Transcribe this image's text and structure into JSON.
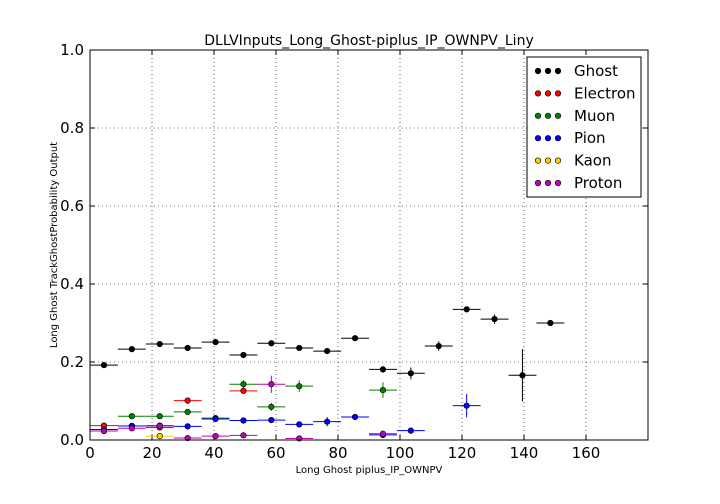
{
  "chart_data": {
    "type": "scatter",
    "title": "DLLVInputs_Long_Ghost-piplus_IP_OWNPV_Liny",
    "xlabel": "Long Ghost piplus_IP_OWNPV",
    "ylabel": "Long Ghost TrackGhostProbability Output",
    "xlim": [
      0,
      180
    ],
    "ylim": [
      0,
      1.0
    ],
    "xticks": [
      "0",
      "20",
      "40",
      "60",
      "80",
      "100",
      "120",
      "140",
      "160"
    ],
    "yticks": [
      "0.0",
      "0.2",
      "0.4",
      "0.6",
      "0.8",
      "1.0"
    ],
    "grid": true,
    "legend_position": "top-right",
    "series": [
      {
        "name": "Ghost",
        "color": "#000000",
        "points": [
          {
            "x": 4.5,
            "y": 0.192,
            "xerr": 4.5,
            "yerr": 0.003
          },
          {
            "x": 13.5,
            "y": 0.233,
            "xerr": 4.5,
            "yerr": 0.004
          },
          {
            "x": 22.5,
            "y": 0.246,
            "xerr": 4.5,
            "yerr": 0.004
          },
          {
            "x": 31.5,
            "y": 0.236,
            "xerr": 4.5,
            "yerr": 0.004
          },
          {
            "x": 40.5,
            "y": 0.251,
            "xerr": 4.5,
            "yerr": 0.004
          },
          {
            "x": 49.5,
            "y": 0.218,
            "xerr": 4.5,
            "yerr": 0.005
          },
          {
            "x": 58.5,
            "y": 0.248,
            "xerr": 4.5,
            "yerr": 0.005
          },
          {
            "x": 67.5,
            "y": 0.236,
            "xerr": 4.5,
            "yerr": 0.005
          },
          {
            "x": 76.5,
            "y": 0.228,
            "xerr": 4.5,
            "yerr": 0.006
          },
          {
            "x": 85.5,
            "y": 0.261,
            "xerr": 4.5,
            "yerr": 0.007
          },
          {
            "x": 94.5,
            "y": 0.181,
            "xerr": 4.5,
            "yerr": 0.008
          },
          {
            "x": 103.5,
            "y": 0.171,
            "xerr": 4.5,
            "yerr": 0.015
          },
          {
            "x": 112.5,
            "y": 0.241,
            "xerr": 4.5,
            "yerr": 0.012
          },
          {
            "x": 121.5,
            "y": 0.335,
            "xerr": 4.5,
            "yerr": 0.005
          },
          {
            "x": 130.5,
            "y": 0.31,
            "xerr": 4.5,
            "yerr": 0.012
          },
          {
            "x": 139.5,
            "y": 0.166,
            "xerr": 4.5,
            "yerr": 0.067
          },
          {
            "x": 148.5,
            "y": 0.3,
            "xerr": 4.5,
            "yerr": 0.003
          }
        ]
      },
      {
        "name": "Electron",
        "color": "#ff0000",
        "points": [
          {
            "x": 4.5,
            "y": 0.037,
            "xerr": 4.5,
            "yerr": 0.003
          },
          {
            "x": 13.5,
            "y": 0.036,
            "xerr": 4.5,
            "yerr": 0.003
          },
          {
            "x": 22.5,
            "y": 0.032,
            "xerr": 4.5,
            "yerr": 0.003
          },
          {
            "x": 31.5,
            "y": 0.101,
            "xerr": 4.5,
            "yerr": 0.008
          },
          {
            "x": 40.5,
            "y": 0.055,
            "xerr": 4.5,
            "yerr": 0.004
          },
          {
            "x": 49.5,
            "y": 0.126,
            "xerr": 4.5,
            "yerr": 0.005
          }
        ]
      },
      {
        "name": "Muon",
        "color": "#008000",
        "points": [
          {
            "x": 13.5,
            "y": 0.061,
            "xerr": 4.5,
            "yerr": 0.003
          },
          {
            "x": 22.5,
            "y": 0.061,
            "xerr": 4.5,
            "yerr": 0.003
          },
          {
            "x": 31.5,
            "y": 0.072,
            "xerr": 4.5,
            "yerr": 0.004
          },
          {
            "x": 40.5,
            "y": 0.056,
            "xerr": 4.5,
            "yerr": 0.004
          },
          {
            "x": 49.5,
            "y": 0.143,
            "xerr": 4.5,
            "yerr": 0.01
          },
          {
            "x": 58.5,
            "y": 0.085,
            "xerr": 4.5,
            "yerr": 0.01
          },
          {
            "x": 67.5,
            "y": 0.138,
            "xerr": 4.5,
            "yerr": 0.015
          },
          {
            "x": 94.5,
            "y": 0.128,
            "xerr": 4.5,
            "yerr": 0.02
          }
        ]
      },
      {
        "name": "Pion",
        "color": "#0000ff",
        "points": [
          {
            "x": 4.5,
            "y": 0.027,
            "xerr": 4.5,
            "yerr": 0.002
          },
          {
            "x": 13.5,
            "y": 0.036,
            "xerr": 4.5,
            "yerr": 0.002
          },
          {
            "x": 22.5,
            "y": 0.037,
            "xerr": 4.5,
            "yerr": 0.002
          },
          {
            "x": 31.5,
            "y": 0.035,
            "xerr": 4.5,
            "yerr": 0.002
          },
          {
            "x": 40.5,
            "y": 0.054,
            "xerr": 4.5,
            "yerr": 0.003
          },
          {
            "x": 49.5,
            "y": 0.05,
            "xerr": 4.5,
            "yerr": 0.003
          },
          {
            "x": 58.5,
            "y": 0.051,
            "xerr": 4.5,
            "yerr": 0.004
          },
          {
            "x": 67.5,
            "y": 0.04,
            "xerr": 4.5,
            "yerr": 0.004
          },
          {
            "x": 76.5,
            "y": 0.047,
            "xerr": 4.5,
            "yerr": 0.012
          },
          {
            "x": 85.5,
            "y": 0.059,
            "xerr": 4.5,
            "yerr": 0.008
          },
          {
            "x": 94.5,
            "y": 0.013,
            "xerr": 4.5,
            "yerr": 0.004
          },
          {
            "x": 103.5,
            "y": 0.024,
            "xerr": 4.5,
            "yerr": 0.004
          },
          {
            "x": 121.5,
            "y": 0.088,
            "xerr": 4.5,
            "yerr": 0.03
          }
        ]
      },
      {
        "name": "Kaon",
        "color": "#ffcc00",
        "points": [
          {
            "x": 22.5,
            "y": 0.01,
            "xerr": 4.5,
            "yerr": 0.004
          }
        ]
      },
      {
        "name": "Proton",
        "color": "#bf00bf",
        "points": [
          {
            "x": 4.5,
            "y": 0.023,
            "xerr": 4.5,
            "yerr": 0.002
          },
          {
            "x": 13.5,
            "y": 0.03,
            "xerr": 4.5,
            "yerr": 0.002
          },
          {
            "x": 22.5,
            "y": 0.036,
            "xerr": 4.5,
            "yerr": 0.003
          },
          {
            "x": 31.5,
            "y": 0.005,
            "xerr": 4.5,
            "yerr": 0.002
          },
          {
            "x": 40.5,
            "y": 0.01,
            "xerr": 4.5,
            "yerr": 0.002
          },
          {
            "x": 49.5,
            "y": 0.012,
            "xerr": 4.5,
            "yerr": 0.002
          },
          {
            "x": 58.5,
            "y": 0.143,
            "xerr": 4.5,
            "yerr": 0.022
          },
          {
            "x": 67.5,
            "y": 0.004,
            "xerr": 4.5,
            "yerr": 0.002
          },
          {
            "x": 94.5,
            "y": 0.016,
            "xerr": 4.5,
            "yerr": 0.004
          }
        ]
      }
    ]
  }
}
